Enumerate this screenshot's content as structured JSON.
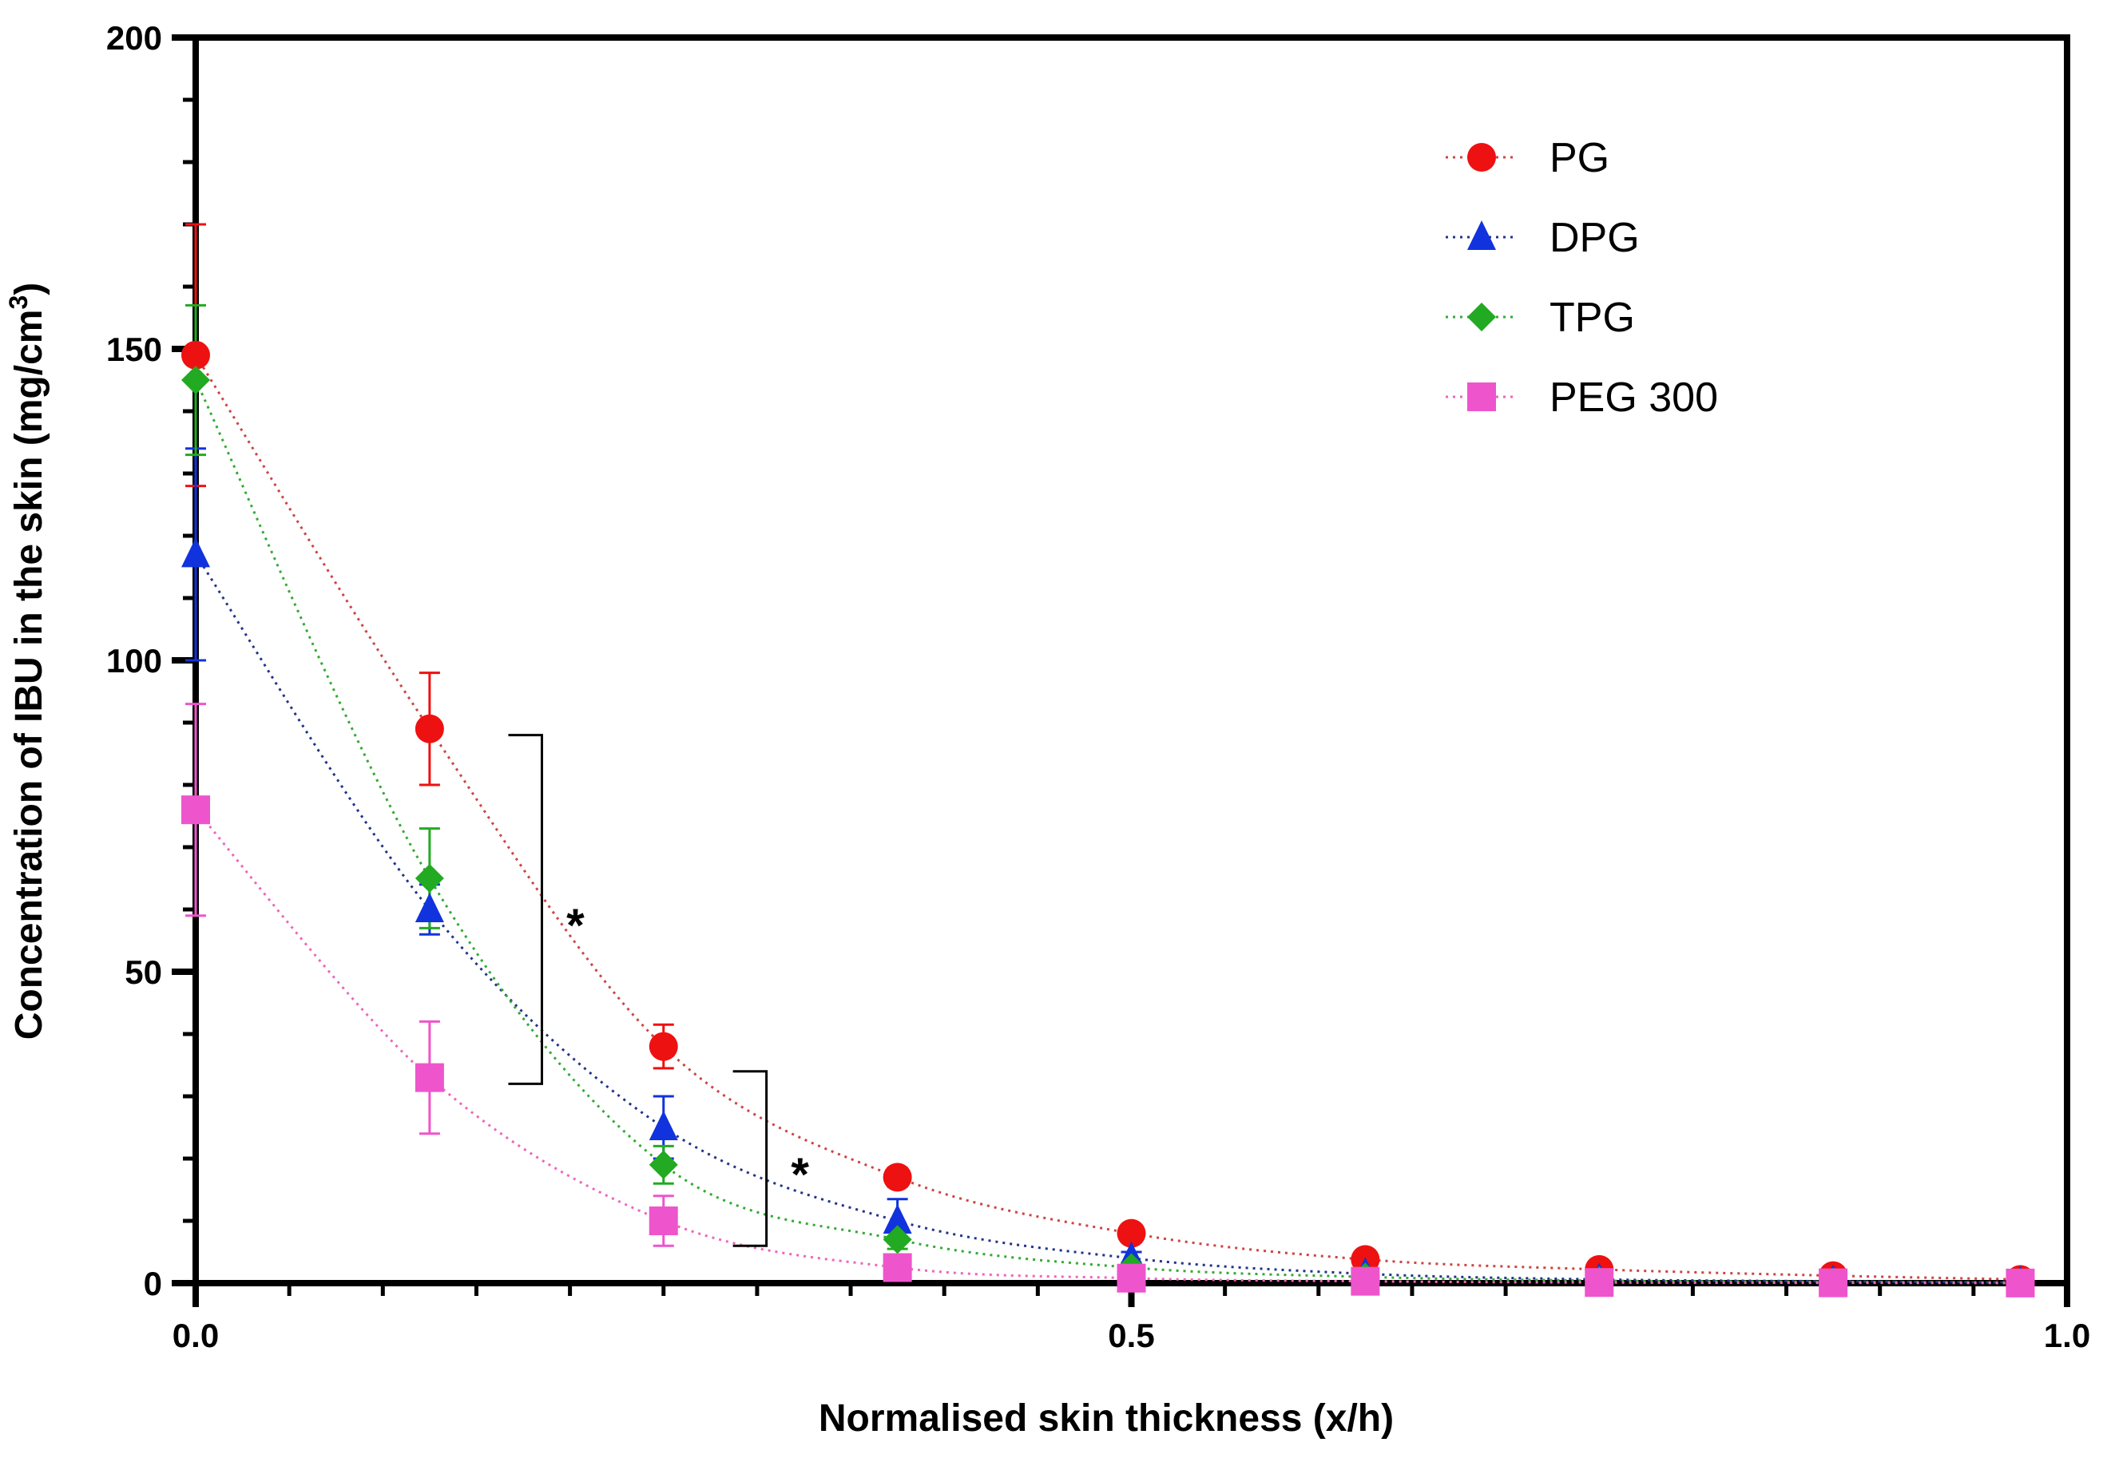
{
  "chart_data": {
    "type": "scatter",
    "title": "",
    "xlabel": "Normalised skin thickness (x/h)",
    "ylabel_main": "Concentration of IBU in the skin (mg/cm",
    "ylabel_sup": "3",
    "ylabel_end": ")",
    "xlim": [
      0,
      1
    ],
    "ylim": [
      0,
      200
    ],
    "x_ticks": [
      {
        "value": 0,
        "label": "0.0"
      },
      {
        "value": 0.5,
        "label": "0.5"
      },
      {
        "value": 1,
        "label": "1.0"
      }
    ],
    "y_ticks": [
      {
        "value": 0,
        "label": "0"
      },
      {
        "value": 50,
        "label": "50"
      },
      {
        "value": 100,
        "label": "100"
      },
      {
        "value": 150,
        "label": "150"
      },
      {
        "value": 200,
        "label": "200"
      }
    ],
    "x_minor_step": 0.05,
    "y_minor_step": 10,
    "grid": false,
    "legend_position": "top-right",
    "series": [
      {
        "name": "PG",
        "marker": "circle",
        "color": "#ee1111",
        "line_color": "#cc4444",
        "x": [
          0,
          0.125,
          0.25,
          0.375,
          0.5,
          0.625,
          0.75,
          0.875,
          0.975
        ],
        "y": [
          149,
          89,
          38,
          17,
          8,
          3.8,
          2.2,
          1.2,
          0.6
        ],
        "err": [
          21,
          9,
          3.5,
          1.5,
          1,
          0.5,
          0.5,
          0.3,
          0.2
        ]
      },
      {
        "name": "DPG",
        "marker": "triangle",
        "color": "#1133dd",
        "line_color": "#223388",
        "x": [
          0,
          0.125,
          0.25,
          0.375,
          0.5,
          0.625,
          0.75,
          0.875,
          0.975
        ],
        "y": [
          117,
          60,
          25,
          10,
          4,
          1.5,
          0.6,
          0.3,
          0.1
        ],
        "err": [
          17,
          4,
          5,
          3.5,
          1,
          0.5,
          0.3,
          0.2,
          0.1
        ]
      },
      {
        "name": "TPG",
        "marker": "diamond",
        "color": "#22aa22",
        "line_color": "#33aa33",
        "x": [
          0,
          0.125,
          0.25,
          0.375,
          0.5,
          0.625,
          0.75,
          0.875,
          0.975
        ],
        "y": [
          145,
          65,
          19,
          7,
          2.5,
          1,
          0.4,
          0.2,
          0.1
        ],
        "err": [
          12,
          8,
          3,
          1.5,
          0.8,
          0.3,
          0.2,
          0.1,
          0.1
        ]
      },
      {
        "name": "PEG 300",
        "marker": "square",
        "color": "#ee55cc",
        "line_color": "#ee66bb",
        "x": [
          0,
          0.125,
          0.25,
          0.375,
          0.5,
          0.625,
          0.75,
          0.875,
          0.975
        ],
        "y": [
          76,
          33,
          10,
          2.5,
          0.8,
          0.3,
          0.1,
          0.05,
          0.02
        ],
        "err": [
          17,
          9,
          4,
          1,
          0.3,
          0.1,
          0.05,
          0.02,
          0.01
        ]
      }
    ],
    "annotations": [
      {
        "text": "*",
        "x": 0.185,
        "y_top": 88,
        "y_bottom": 32
      },
      {
        "text": "*",
        "x": 0.305,
        "y_top": 34,
        "y_bottom": 6
      }
    ]
  }
}
